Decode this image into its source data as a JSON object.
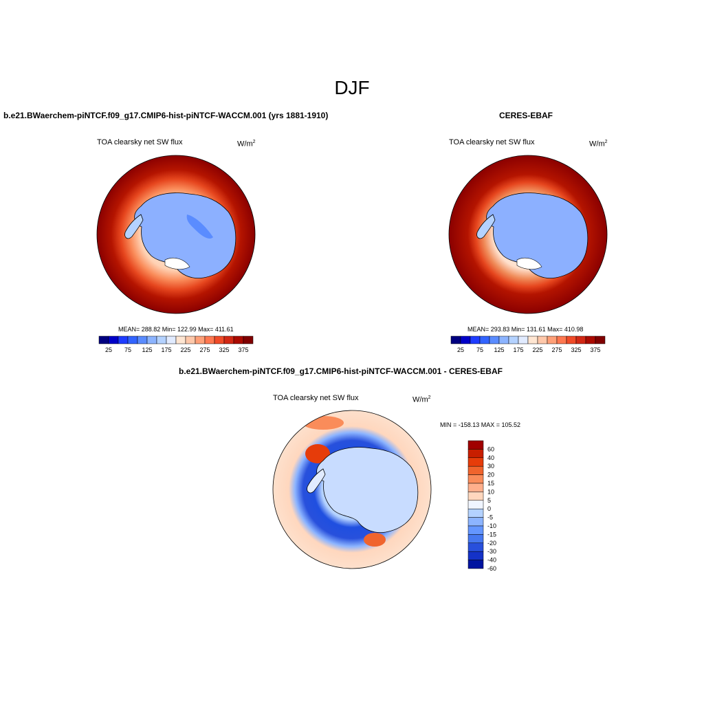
{
  "page": {
    "title": "DJF"
  },
  "panels": [
    {
      "id": "model",
      "header": "b.e21.BWaerchem-piNTCF.f09_g17.CMIP6-hist-piNTCF-WACCM.001 (yrs 1881-1910)",
      "variable": "TOA clearsky net SW flux",
      "units_base": "W/m",
      "units_exp": "2",
      "stats": "MEAN= 288.82  Min= 122.99  Max= 411.61",
      "colorbar": {
        "colors": [
          "#000080",
          "#0000c8",
          "#1e3cff",
          "#3264ff",
          "#5a8cff",
          "#8cb4ff",
          "#b4d2ff",
          "#e1ebff",
          "#ffe6d2",
          "#ffc8aa",
          "#ffa078",
          "#ff7850",
          "#f04b28",
          "#d22814",
          "#aa0a00",
          "#800000"
        ],
        "labels": [
          "25",
          "75",
          "125",
          "175",
          "225",
          "275",
          "325",
          "375"
        ]
      }
    },
    {
      "id": "obs",
      "header": "CERES-EBAF",
      "variable": "TOA clearsky net SW flux",
      "units_base": "W/m",
      "units_exp": "2",
      "stats": "MEAN= 293.83  Min= 131.61  Max= 410.98",
      "colorbar": {
        "colors": [
          "#000080",
          "#0000c8",
          "#1e3cff",
          "#3264ff",
          "#5a8cff",
          "#8cb4ff",
          "#b4d2ff",
          "#e1ebff",
          "#ffe6d2",
          "#ffc8aa",
          "#ffa078",
          "#ff7850",
          "#f04b28",
          "#d22814",
          "#aa0a00",
          "#800000"
        ],
        "labels": [
          "25",
          "75",
          "125",
          "175",
          "225",
          "275",
          "325",
          "375"
        ]
      }
    },
    {
      "id": "diff",
      "header": "b.e21.BWaerchem-piNTCF.f09_g17.CMIP6-hist-piNTCF-WACCM.001 - CERES-EBAF",
      "variable": "TOA clearsky net SW flux",
      "units_base": "W/m",
      "units_exp": "2",
      "stats": "MIN = -158.13 MAX = 105.52",
      "colorbar": {
        "colors": [
          "#a00000",
          "#c81e00",
          "#e63c0a",
          "#f0642d",
          "#fa8c5a",
          "#ffaf8c",
          "#ffd7be",
          "#f0f5ff",
          "#b4d2ff",
          "#8cb4ff",
          "#6496ff",
          "#4678f0",
          "#2850dc",
          "#1432c8",
          "#0014a0"
        ],
        "labels": [
          "60",
          "40",
          "30",
          "20",
          "15",
          "10",
          "5",
          "0",
          "-5",
          "-10",
          "-15",
          "-20",
          "-30",
          "-40",
          "-60"
        ]
      }
    }
  ],
  "colors": {
    "continent_high": "#8cb0ff",
    "continent_mid": "#a8c4ff",
    "ring_dark": "#8b0000",
    "diff_background": "#fde0cc",
    "diff_blue": "#1f4fe0"
  }
}
